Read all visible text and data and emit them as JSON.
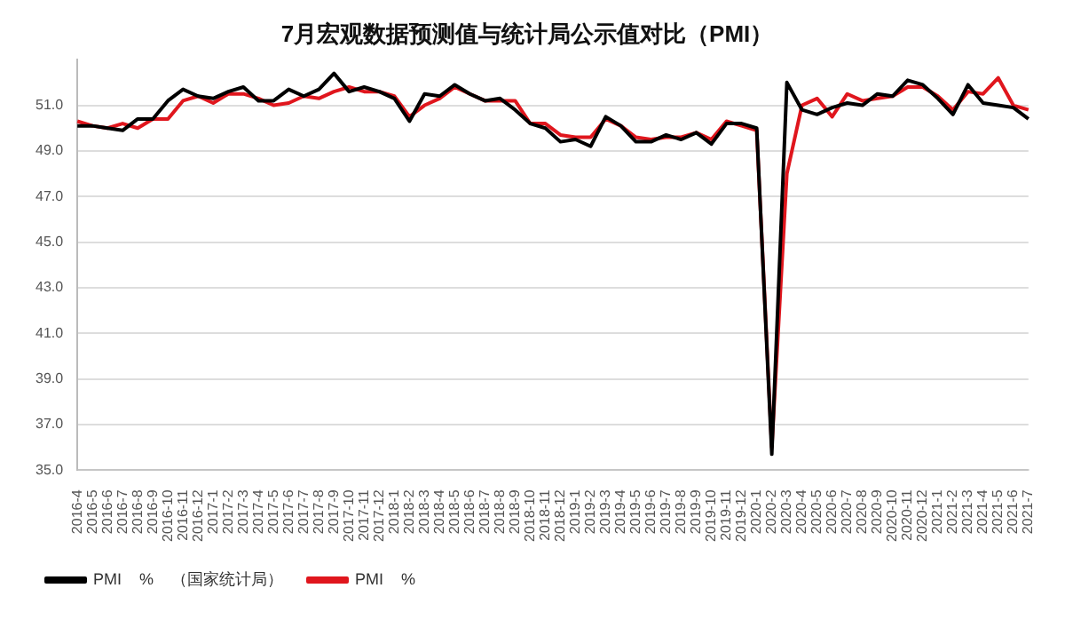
{
  "chart_data": {
    "type": "line",
    "title": "7月宏观数据预测值与统计局公示值对比（PMI）",
    "categories": [
      "2016-4",
      "2016-5",
      "2016-6",
      "2016-7",
      "2016-8",
      "2016-9",
      "2016-10",
      "2016-11",
      "2016-12",
      "2017-1",
      "2017-2",
      "2017-3",
      "2017-4",
      "2017-5",
      "2017-6",
      "2017-7",
      "2017-8",
      "2017-9",
      "2017-10",
      "2017-11",
      "2017-12",
      "2018-1",
      "2018-2",
      "2018-3",
      "2018-4",
      "2018-5",
      "2018-6",
      "2018-7",
      "2018-8",
      "2018-9",
      "2018-10",
      "2018-11",
      "2018-12",
      "2019-1",
      "2019-2",
      "2019-3",
      "2019-4",
      "2019-5",
      "2019-6",
      "2019-7",
      "2019-8",
      "2019-9",
      "2019-10",
      "2019-11",
      "2019-12",
      "2020-1",
      "2020-2",
      "2020-3",
      "2020-4",
      "2020-5",
      "2020-6",
      "2020-7",
      "2020-8",
      "2020-9",
      "2020-10",
      "2020-11",
      "2020-12",
      "2021-1",
      "2021-2",
      "2021-3",
      "2021-4",
      "2021-5",
      "2021-6",
      "2021-7"
    ],
    "series": [
      {
        "name": "PMI    %    （国家统计局）",
        "color": "#000000",
        "values": [
          50.1,
          50.1,
          50.0,
          49.9,
          50.4,
          50.4,
          51.2,
          51.7,
          51.4,
          51.3,
          51.6,
          51.8,
          51.2,
          51.2,
          51.7,
          51.4,
          51.7,
          52.4,
          51.6,
          51.8,
          51.6,
          51.3,
          50.3,
          51.5,
          51.4,
          51.9,
          51.5,
          51.2,
          51.3,
          50.8,
          50.2,
          50.0,
          49.4,
          49.5,
          49.2,
          50.5,
          50.1,
          49.4,
          49.4,
          49.7,
          49.5,
          49.8,
          49.3,
          50.2,
          50.2,
          50.0,
          35.7,
          52.0,
          50.8,
          50.6,
          50.9,
          51.1,
          51.0,
          51.5,
          51.4,
          52.1,
          51.9,
          51.3,
          50.6,
          51.9,
          51.1,
          51.0,
          50.9,
          50.4
        ]
      },
      {
        "name": "PMI    %",
        "color": "#e0161d",
        "values": [
          50.3,
          50.1,
          50.0,
          50.2,
          50.0,
          50.4,
          50.4,
          51.2,
          51.4,
          51.1,
          51.5,
          51.5,
          51.3,
          51.0,
          51.1,
          51.4,
          51.3,
          51.6,
          51.8,
          51.6,
          51.6,
          51.4,
          50.5,
          51.0,
          51.3,
          51.8,
          51.5,
          51.2,
          51.2,
          51.2,
          50.2,
          50.2,
          49.7,
          49.6,
          49.6,
          50.4,
          50.1,
          49.6,
          49.5,
          49.6,
          49.6,
          49.8,
          49.5,
          50.3,
          50.1,
          49.9,
          36.0,
          48.0,
          51.0,
          51.3,
          50.5,
          51.5,
          51.2,
          51.3,
          51.4,
          51.8,
          51.8,
          51.4,
          50.8,
          51.6,
          51.5,
          52.2,
          51.0,
          50.8
        ]
      }
    ],
    "ylim": [
      35,
      53
    ],
    "yticks": [
      {
        "value": 35,
        "label": "35.0"
      },
      {
        "value": 37,
        "label": "37.0"
      },
      {
        "value": 39,
        "label": "39.0"
      },
      {
        "value": 41,
        "label": "41.0"
      },
      {
        "value": 43,
        "label": "43.0"
      },
      {
        "value": 45,
        "label": "45.0"
      },
      {
        "value": 47,
        "label": "47.0"
      },
      {
        "value": 49,
        "label": "49.0"
      },
      {
        "value": 51,
        "label": "51.0"
      }
    ],
    "grid": "y",
    "legend": "bottom left",
    "marker": "none",
    "line_style": "solid"
  }
}
